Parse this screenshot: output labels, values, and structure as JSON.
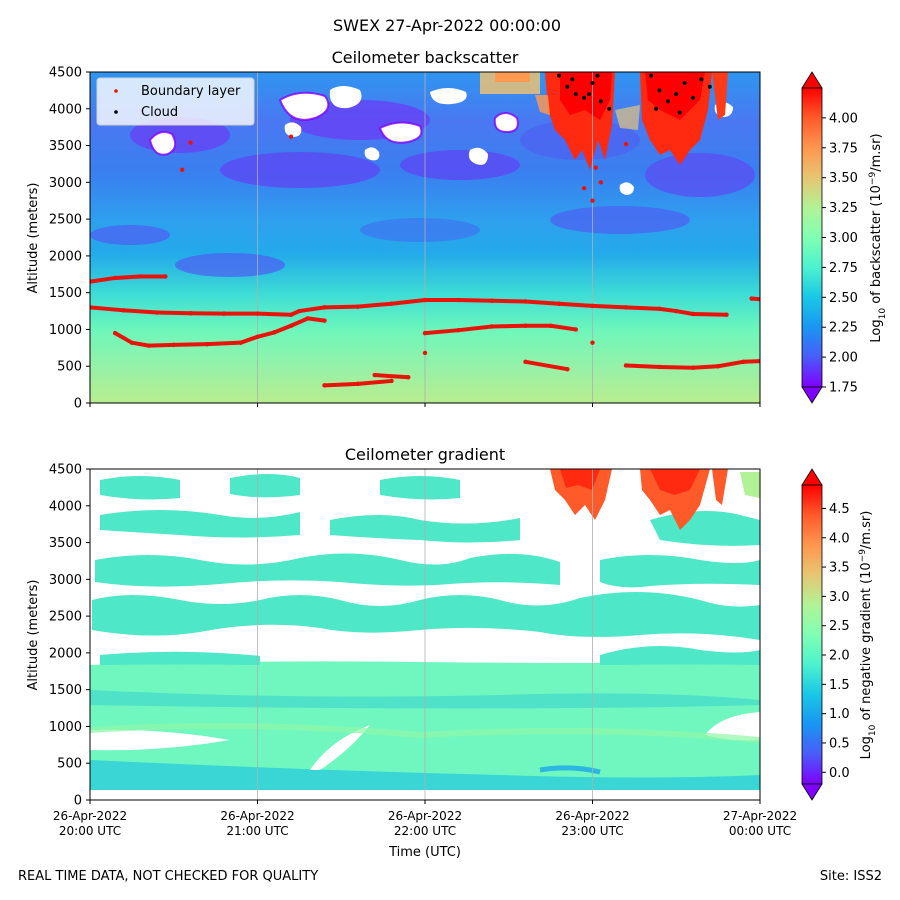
{
  "suptitle": "SWEX 27-Apr-2022 00:00:00",
  "footer": {
    "left": "REAL TIME DATA, NOT CHECKED FOR QUALITY",
    "right": "Site: ISS2"
  },
  "colors": {
    "boundary_layer": "#e8140c",
    "cloud": "#000000",
    "colormap": [
      "#7f00ff",
      "#4a5cf8",
      "#1996f3",
      "#1ac7e6",
      "#4cf2ce",
      "#80ffb4",
      "#b2f296",
      "#e6c672",
      "#ff964f",
      "#ff5a2a",
      "#ff0000"
    ]
  },
  "chart_data": [
    {
      "type": "heatmap",
      "title": "Ceilometer backscatter",
      "xlabel": "",
      "ylabel": "Altitude (meters)",
      "xlim": [
        0,
        4
      ],
      "ylim": [
        0,
        4500
      ],
      "yticks": [
        0,
        500,
        1000,
        1500,
        2000,
        2500,
        3000,
        3500,
        4000,
        4500
      ],
      "ytick_labels": [
        "0",
        "500",
        "1000",
        "1500",
        "2000",
        "2500",
        "3000",
        "3500",
        "4000",
        "4500"
      ],
      "xticks_hours": [
        0,
        1,
        2,
        3,
        4
      ],
      "colorbar": {
        "label": "Log10 of backscatter (10^-9/m.sr)",
        "label_main": "Log",
        "label_sub": "10",
        "label_rest": " of backscatter (10",
        "label_sup": "−9",
        "label_end": "/m.sr)",
        "min": 1.75,
        "max": 4.25,
        "ticks": [
          1.75,
          2.0,
          2.25,
          2.5,
          2.75,
          3.0,
          3.25,
          3.5,
          3.75,
          4.0
        ],
        "tick_labels": [
          "1.75",
          "2.00",
          "2.25",
          "2.50",
          "2.75",
          "3.00",
          "3.25",
          "3.50",
          "3.75",
          "4.00"
        ],
        "extend": "both"
      },
      "legend": {
        "placement": "upper-left",
        "entries": [
          {
            "label": "Boundary layer",
            "color": "#e8140c"
          },
          {
            "label": "Cloud",
            "color": "#000000"
          }
        ]
      },
      "series": [
        {
          "name": "Boundary layer",
          "points": [
            [
              0.0,
              1650
            ],
            [
              0.15,
              1700
            ],
            [
              0.3,
              1720
            ],
            [
              0.45,
              1720
            ],
            [
              0.0,
              1300
            ],
            [
              0.2,
              1260
            ],
            [
              0.4,
              1230
            ],
            [
              0.6,
              1220
            ],
            [
              0.8,
              1215
            ],
            [
              1.0,
              1215
            ],
            [
              1.2,
              1200
            ],
            [
              1.25,
              1250
            ],
            [
              1.4,
              1300
            ],
            [
              1.6,
              1310
            ],
            [
              1.8,
              1350
            ],
            [
              2.0,
              1400
            ],
            [
              2.2,
              1400
            ],
            [
              2.4,
              1390
            ],
            [
              2.6,
              1380
            ],
            [
              2.8,
              1350
            ],
            [
              3.0,
              1320
            ],
            [
              3.2,
              1300
            ],
            [
              3.4,
              1280
            ],
            [
              3.5,
              1250
            ],
            [
              3.6,
              1210
            ],
            [
              3.8,
              1200
            ],
            [
              3.95,
              1420
            ],
            [
              4.0,
              1410
            ],
            [
              0.15,
              950
            ],
            [
              0.25,
              820
            ],
            [
              0.35,
              780
            ],
            [
              0.5,
              790
            ],
            [
              0.7,
              800
            ],
            [
              0.9,
              820
            ],
            [
              1.0,
              900
            ],
            [
              1.1,
              960
            ],
            [
              1.2,
              1050
            ],
            [
              1.3,
              1150
            ],
            [
              1.4,
              1120
            ],
            [
              2.0,
              950
            ],
            [
              2.2,
              990
            ],
            [
              2.4,
              1040
            ],
            [
              2.6,
              1050
            ],
            [
              2.75,
              1050
            ],
            [
              2.9,
              1000
            ],
            [
              3.0,
              820
            ],
            [
              2.0,
              680
            ],
            [
              1.4,
              240
            ],
            [
              1.6,
              260
            ],
            [
              1.8,
              300
            ],
            [
              1.7,
              380
            ],
            [
              1.9,
              350
            ],
            [
              2.6,
              560
            ],
            [
              2.85,
              460
            ],
            [
              3.2,
              510
            ],
            [
              3.4,
              490
            ],
            [
              3.6,
              480
            ],
            [
              3.75,
              500
            ],
            [
              3.9,
              560
            ],
            [
              4.0,
              570
            ],
            [
              2.8,
              1350
            ],
            [
              3.05,
              3000
            ],
            [
              3.0,
              2750
            ],
            [
              2.95,
              2920
            ],
            [
              3.02,
              3200
            ],
            [
              0.55,
              3170
            ],
            [
              0.6,
              3540
            ],
            [
              1.2,
              3620
            ],
            [
              3.2,
              3520
            ]
          ]
        },
        {
          "name": "Cloud",
          "points": [
            [
              2.8,
              4450
            ],
            [
              2.85,
              4300
            ],
            [
              2.9,
              4200
            ],
            [
              2.95,
              4150
            ],
            [
              3.0,
              4350
            ],
            [
              3.05,
              4100
            ],
            [
              3.1,
              4000
            ],
            [
              2.88,
              4400
            ],
            [
              2.98,
              4200
            ],
            [
              3.03,
              4450
            ],
            [
              3.35,
              4450
            ],
            [
              3.4,
              4250
            ],
            [
              3.45,
              4100
            ],
            [
              3.5,
              4200
            ],
            [
              3.55,
              4350
            ],
            [
              3.6,
              4150
            ],
            [
              3.65,
              4400
            ],
            [
              3.7,
              4300
            ],
            [
              3.38,
              4000
            ],
            [
              3.52,
              3950
            ]
          ]
        }
      ]
    },
    {
      "type": "heatmap",
      "title": "Ceilometer gradient",
      "xlabel": "Time (UTC)",
      "ylabel": "Altitude (meters)",
      "xlim": [
        0,
        4
      ],
      "ylim": [
        0,
        4500
      ],
      "yticks": [
        0,
        500,
        1000,
        1500,
        2000,
        2500,
        3000,
        3500,
        4000,
        4500
      ],
      "ytick_labels": [
        "0",
        "500",
        "1000",
        "1500",
        "2000",
        "2500",
        "3000",
        "3500",
        "4000",
        "4500"
      ],
      "xticks_hours": [
        0,
        1,
        2,
        3,
        4
      ],
      "xtick_labels": [
        [
          "26-Apr-2022",
          "20:00 UTC"
        ],
        [
          "26-Apr-2022",
          "21:00 UTC"
        ],
        [
          "26-Apr-2022",
          "22:00 UTC"
        ],
        [
          "26-Apr-2022",
          "23:00 UTC"
        ],
        [
          "27-Apr-2022",
          "00:00 UTC"
        ]
      ],
      "colorbar": {
        "label": "Log10 of negative gradient (10^-9/m.sr)",
        "label_main": "Log",
        "label_sub": "10",
        "label_rest": " of negative gradient (10",
        "label_sup": "−9",
        "label_end": "/m.sr)",
        "min": -0.2,
        "max": 4.9,
        "ticks": [
          0.0,
          0.5,
          1.0,
          1.5,
          2.0,
          2.5,
          3.0,
          3.5,
          4.0,
          4.5
        ],
        "tick_labels": [
          "0.0",
          "0.5",
          "1.0",
          "1.5",
          "2.0",
          "2.5",
          "3.0",
          "3.5",
          "4.0",
          "4.5"
        ],
        "extend": "both"
      },
      "bands": [
        [
          0.0,
          0.35,
          1.8,
          1.6,
          1.0,
          1.3
        ],
        [
          0.08,
          0.35,
          950,
          1050,
          1650,
          1900
        ],
        [
          2.2,
          2.55,
          1150,
          1250,
          1900,
          2150
        ],
        [
          2.25,
          2.4,
          1250,
          1450,
          1800,
          2050
        ],
        [
          2.8,
          2.95,
          1400,
          2050,
          3100,
          3300
        ],
        [
          3.8,
          4.3,
          3400,
          3600,
          4000,
          4400
        ]
      ]
    }
  ]
}
